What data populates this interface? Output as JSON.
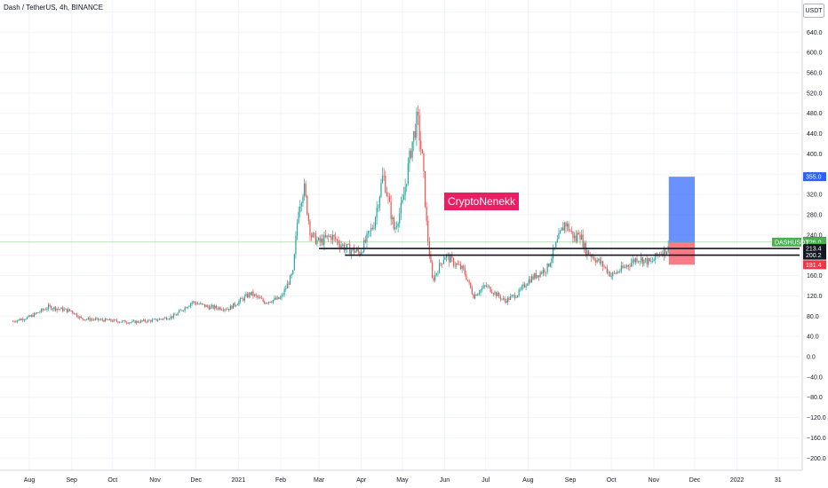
{
  "header": {
    "title": "Dash / TetherUS, 4h, BINANCE",
    "unit": "USDT"
  },
  "watermark": "CryptoNenekk",
  "colors": {
    "up": "#26a69a",
    "down": "#ef5350",
    "line": "#131722",
    "target": "#2962ff",
    "stop": "#f23645",
    "grid": "#f0f3fa"
  },
  "chart_data": {
    "type": "candlestick",
    "title": "Dash / TetherUS, 4h, BINANCE",
    "ylim": [
      -220,
      680
    ],
    "y_ticks": [
      "680.0",
      "640.0",
      "600.0",
      "560.0",
      "520.0",
      "480.0",
      "440.0",
      "400.0",
      "360.0",
      "320.0",
      "280.0",
      "240.0",
      "200.0",
      "160.0",
      "120.0",
      "80.0",
      "40.0",
      "0.0",
      "−40.0",
      "−80.0",
      "−120.0",
      "−160.0",
      "−200.0"
    ],
    "y_tick_values": [
      680,
      640,
      600,
      560,
      520,
      480,
      440,
      400,
      360,
      320,
      280,
      240,
      200,
      160,
      120,
      80,
      40,
      0,
      -40,
      -80,
      -120,
      -160,
      -200
    ],
    "x_ticks": [
      {
        "label": "Aug",
        "date": "2020-08-01"
      },
      {
        "label": "Sep",
        "date": "2020-09-01"
      },
      {
        "label": "Oct",
        "date": "2020-10-01"
      },
      {
        "label": "Nov",
        "date": "2020-11-01"
      },
      {
        "label": "Dec",
        "date": "2020-12-01"
      },
      {
        "label": "2021",
        "date": "2021-01-01"
      },
      {
        "label": "Feb",
        "date": "2021-02-01"
      },
      {
        "label": "Mar",
        "date": "2021-03-01"
      },
      {
        "label": "Apr",
        "date": "2021-04-01"
      },
      {
        "label": "May",
        "date": "2021-05-01"
      },
      {
        "label": "Jun",
        "date": "2021-06-01"
      },
      {
        "label": "Jul",
        "date": "2021-07-01"
      },
      {
        "label": "Aug",
        "date": "2021-08-01"
      },
      {
        "label": "Sep",
        "date": "2021-09-01"
      },
      {
        "label": "Oct",
        "date": "2021-10-01"
      },
      {
        "label": "Nov",
        "date": "2021-11-01"
      },
      {
        "label": "Dec",
        "date": "2021-12-01"
      },
      {
        "label": "2022",
        "date": "2022-01-01"
      },
      {
        "label": "31",
        "date": "2022-01-31"
      }
    ],
    "price_path": [
      [
        "2020-07-20",
        70
      ],
      [
        "2020-08-01",
        78
      ],
      [
        "2020-08-15",
        98
      ],
      [
        "2020-09-01",
        90
      ],
      [
        "2020-09-08",
        75
      ],
      [
        "2020-09-25",
        72
      ],
      [
        "2020-10-15",
        68
      ],
      [
        "2020-11-01",
        72
      ],
      [
        "2020-11-15",
        80
      ],
      [
        "2020-11-28",
        108
      ],
      [
        "2020-12-10",
        98
      ],
      [
        "2020-12-25",
        95
      ],
      [
        "2021-01-10",
        125
      ],
      [
        "2021-01-20",
        108
      ],
      [
        "2021-02-01",
        115
      ],
      [
        "2021-02-10",
        165
      ],
      [
        "2021-02-14",
        295
      ],
      [
        "2021-02-18",
        335
      ],
      [
        "2021-02-23",
        240
      ],
      [
        "2021-03-01",
        225
      ],
      [
        "2021-03-10",
        238
      ],
      [
        "2021-03-20",
        215
      ],
      [
        "2021-03-31",
        205
      ],
      [
        "2021-04-10",
        260
      ],
      [
        "2021-04-17",
        360
      ],
      [
        "2021-04-25",
        250
      ],
      [
        "2021-05-01",
        300
      ],
      [
        "2021-05-08",
        420
      ],
      [
        "2021-05-12",
        470
      ],
      [
        "2021-05-16",
        380
      ],
      [
        "2021-05-19",
        250
      ],
      [
        "2021-05-23",
        150
      ],
      [
        "2021-06-01",
        200
      ],
      [
        "2021-06-15",
        170
      ],
      [
        "2021-06-22",
        120
      ],
      [
        "2021-07-01",
        140
      ],
      [
        "2021-07-15",
        110
      ],
      [
        "2021-07-25",
        125
      ],
      [
        "2021-08-01",
        150
      ],
      [
        "2021-08-15",
        175
      ],
      [
        "2021-08-28",
        265
      ],
      [
        "2021-09-05",
        230
      ],
      [
        "2021-09-07",
        250
      ],
      [
        "2021-09-12",
        210
      ],
      [
        "2021-09-25",
        180
      ],
      [
        "2021-10-01",
        160
      ],
      [
        "2021-10-10",
        175
      ],
      [
        "2021-10-20",
        195
      ],
      [
        "2021-10-30",
        185
      ],
      [
        "2021-11-05",
        205
      ],
      [
        "2021-11-12",
        213.4
      ]
    ],
    "levels": [
      {
        "name": "resistance",
        "value": 213.4
      },
      {
        "name": "support",
        "value": 200.2
      }
    ],
    "position": {
      "type": "long",
      "entry": 226.0,
      "target": 355.0,
      "stop": 181.4,
      "start": "2021-11-12",
      "end": "2021-12-01"
    },
    "price_labels": [
      {
        "text": "355.0",
        "value": 355.0,
        "color": "#2962ff"
      },
      {
        "text": "227.7",
        "value": 227.7,
        "color": "#787b86"
      },
      {
        "text": "226.0",
        "value": 226.0,
        "color": "#4caf50"
      },
      {
        "text": "38:43",
        "value": 216.0,
        "color": "#4caf50"
      },
      {
        "text": "213.4",
        "value": 213.4,
        "color": "#131722"
      },
      {
        "text": "200.2",
        "value": 200.2,
        "color": "#131722"
      },
      {
        "text": "181.4",
        "value": 181.4,
        "color": "#f23645"
      }
    ],
    "symbol_tag": "DASHUSDT",
    "last_price": 226.0
  }
}
